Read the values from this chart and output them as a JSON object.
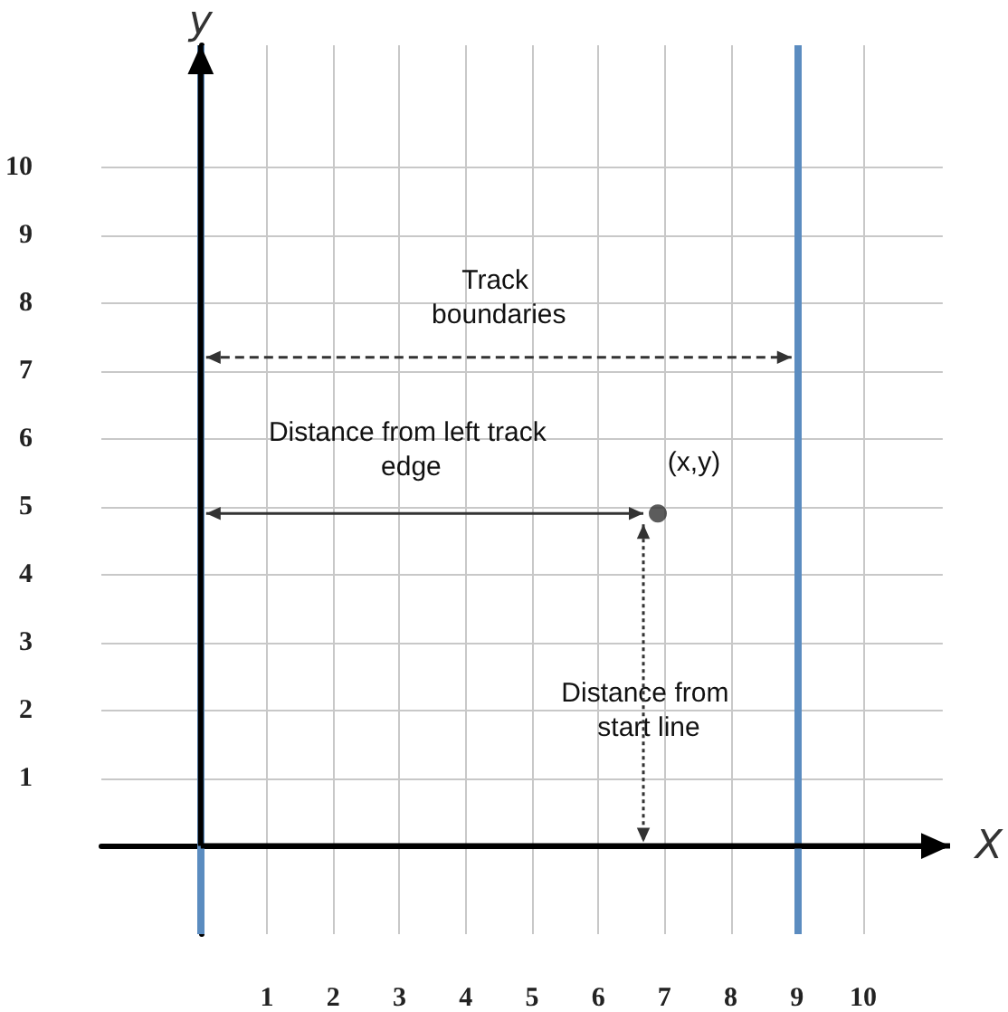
{
  "chart_data": {
    "type": "scatter",
    "xlabel": "X",
    "ylabel": "y",
    "xlim": [
      -1.5,
      11.2
    ],
    "ylim": [
      -1.3,
      11.8
    ],
    "xticks": [
      1,
      2,
      3,
      4,
      5,
      6,
      7,
      8,
      9,
      10
    ],
    "yticks": [
      1,
      2,
      3,
      4,
      5,
      6,
      7,
      8,
      9,
      10
    ],
    "grid": true,
    "series": [
      {
        "color": "#333333",
        "marker": "circle",
        "x": [
          6.9
        ],
        "values": [
          4.9
        ]
      }
    ],
    "ref_lines": [
      {
        "axis": "x",
        "value": 0,
        "color": "#5b8cc0"
      },
      {
        "axis": "x",
        "value": 9,
        "color": "#5b8cc0"
      }
    ],
    "annotations": [
      "Track boundaries",
      "Distance from left track edge",
      "Distance from start line",
      "(x,y)"
    ]
  }
}
